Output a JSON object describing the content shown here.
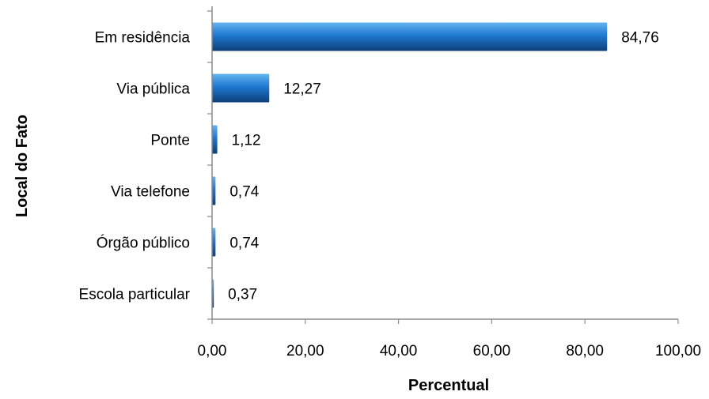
{
  "chart_data": {
    "type": "bar",
    "orientation": "horizontal",
    "title": "",
    "xlabel": "Percentual",
    "ylabel": "Local do Fato",
    "categories": [
      "Em residência",
      "Via pública",
      "Ponte",
      "Via telefone",
      "Órgão público",
      "Escola particular"
    ],
    "values": [
      84.76,
      12.27,
      1.12,
      0.74,
      0.74,
      0.37
    ],
    "value_labels": [
      "84,76",
      "12,27",
      "1,12",
      "0,74",
      "0,74",
      "0,37"
    ],
    "xlim": [
      0,
      100
    ],
    "xticks": [
      0,
      20,
      40,
      60,
      80,
      100
    ],
    "xtick_labels": [
      "0,00",
      "20,00",
      "40,00",
      "60,00",
      "80,00",
      "100,00"
    ],
    "grid": false,
    "legend": "none",
    "colors": {
      "bar_light": "#62b4f0",
      "bar_mid": "#1f78d1",
      "bar_dark": "#0d3f7a",
      "axis": "#8c8c8c"
    }
  }
}
